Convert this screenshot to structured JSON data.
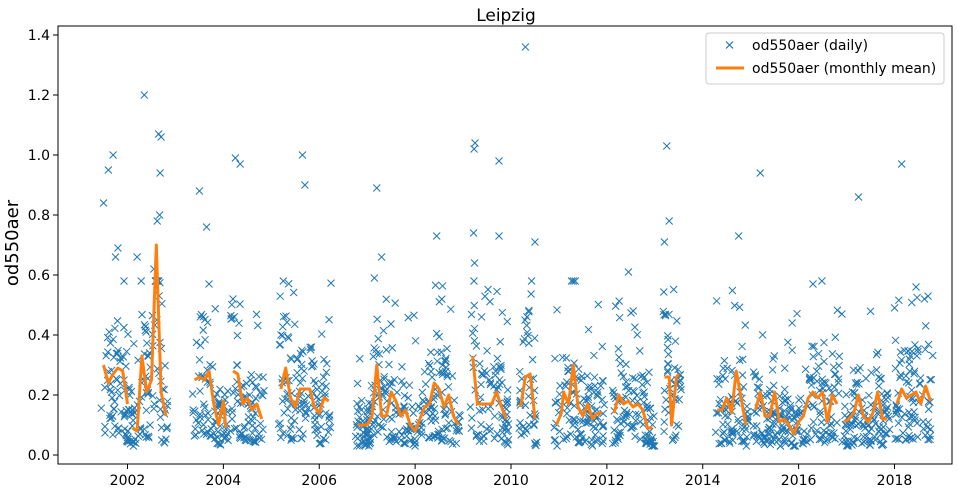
{
  "chart_data": {
    "type": "line",
    "title": "Leipzig",
    "xlabel": "",
    "ylabel": "od550aer",
    "xlim": [
      2000.55,
      2019.2
    ],
    "ylim": [
      -0.03,
      1.43
    ],
    "x_ticks": [
      2002,
      2004,
      2006,
      2008,
      2010,
      2012,
      2014,
      2016,
      2018
    ],
    "x_tick_labels": [
      "2002",
      "2004",
      "2006",
      "2008",
      "2010",
      "2012",
      "2014",
      "2016",
      "2018"
    ],
    "y_ticks": [
      0.0,
      0.2,
      0.4,
      0.6,
      0.8,
      1.0,
      1.2,
      1.4
    ],
    "y_tick_labels": [
      "0.0",
      "0.2",
      "0.4",
      "0.6",
      "0.8",
      "1.0",
      "1.2",
      "1.4"
    ],
    "grid": false,
    "legend_position": "top-right",
    "colors": {
      "daily": "#1f77b4",
      "monthly": "#ff7f0e"
    },
    "series": [
      {
        "name": "od550aer (daily)",
        "style": "markers-x",
        "outliers": [
          [
            2001.5,
            0.84
          ],
          [
            2001.6,
            0.95
          ],
          [
            2001.7,
            1.0
          ],
          [
            2001.8,
            0.69
          ],
          [
            2001.75,
            0.66
          ],
          [
            2002.35,
            1.2
          ],
          [
            2002.55,
            0.62
          ],
          [
            2002.65,
            1.07
          ],
          [
            2002.7,
            1.06
          ],
          [
            2002.68,
            0.94
          ],
          [
            2002.67,
            0.8
          ],
          [
            2002.62,
            0.78
          ],
          [
            2002.2,
            0.66
          ],
          [
            2003.5,
            0.88
          ],
          [
            2003.65,
            0.76
          ],
          [
            2004.25,
            0.99
          ],
          [
            2004.35,
            0.97
          ],
          [
            2005.65,
            1.0
          ],
          [
            2005.7,
            0.9
          ],
          [
            2007.2,
            0.89
          ],
          [
            2007.3,
            0.66
          ],
          [
            2008.45,
            0.73
          ],
          [
            2009.25,
            1.04
          ],
          [
            2009.23,
            1.02
          ],
          [
            2009.22,
            0.74
          ],
          [
            2009.24,
            0.64
          ],
          [
            2009.75,
            0.98
          ],
          [
            2009.75,
            0.73
          ],
          [
            2010.3,
            1.36
          ],
          [
            2010.5,
            0.71
          ],
          [
            2012.45,
            0.61
          ],
          [
            2013.25,
            1.03
          ],
          [
            2013.3,
            0.78
          ],
          [
            2013.2,
            0.71
          ],
          [
            2014.75,
            0.73
          ],
          [
            2015.2,
            0.94
          ],
          [
            2017.25,
            0.86
          ],
          [
            2018.15,
            0.97
          ],
          [
            2018.45,
            0.56
          ],
          [
            2005.25,
            0.58
          ],
          [
            2004.2,
            0.52
          ],
          [
            2003.7,
            0.57
          ],
          [
            2007.15,
            0.59
          ],
          [
            2016.3,
            0.57
          ],
          [
            2012.55,
            0.48
          ]
        ]
      },
      {
        "name": "od550aer (monthly mean)",
        "style": "line",
        "segments": [
          [
            [
              2001.5,
              0.3
            ],
            [
              2001.6,
              0.24
            ],
            [
              2001.7,
              0.27
            ],
            [
              2001.8,
              0.29
            ],
            [
              2001.9,
              0.28
            ],
            [
              2002.0,
              0.17
            ]
          ],
          [
            [
              2002.1,
              0.09
            ],
            [
              2002.2,
              0.08
            ],
            [
              2002.3,
              0.33
            ],
            [
              2002.4,
              0.21
            ],
            [
              2002.5,
              0.25
            ],
            [
              2002.6,
              0.7
            ],
            [
              2002.7,
              0.21
            ],
            [
              2002.8,
              0.13
            ]
          ],
          [
            [
              2003.4,
              0.25
            ],
            [
              2003.5,
              0.26
            ],
            [
              2003.6,
              0.25
            ],
            [
              2003.7,
              0.28
            ],
            [
              2003.8,
              0.17
            ],
            [
              2003.9,
              0.1
            ],
            [
              2004.0,
              0.18
            ],
            [
              2004.05,
              0.09
            ]
          ],
          [
            [
              2004.2,
              0.28
            ],
            [
              2004.3,
              0.27
            ],
            [
              2004.4,
              0.17
            ],
            [
              2004.5,
              0.19
            ],
            [
              2004.6,
              0.15
            ],
            [
              2004.7,
              0.17
            ],
            [
              2004.8,
              0.12
            ]
          ],
          [
            [
              2005.2,
              0.22
            ],
            [
              2005.3,
              0.29
            ],
            [
              2005.4,
              0.19
            ],
            [
              2005.5,
              0.16
            ],
            [
              2005.6,
              0.22
            ],
            [
              2005.7,
              0.22
            ],
            [
              2005.8,
              0.22
            ],
            [
              2005.9,
              0.16
            ],
            [
              2006.0,
              0.14
            ],
            [
              2006.1,
              0.19
            ],
            [
              2006.2,
              0.18
            ]
          ],
          [
            [
              2006.8,
              0.1
            ],
            [
              2006.9,
              0.1
            ],
            [
              2007.0,
              0.1
            ],
            [
              2007.1,
              0.13
            ],
            [
              2007.2,
              0.3
            ],
            [
              2007.3,
              0.13
            ],
            [
              2007.4,
              0.13
            ],
            [
              2007.5,
              0.21
            ],
            [
              2007.6,
              0.18
            ],
            [
              2007.7,
              0.13
            ],
            [
              2007.8,
              0.15
            ],
            [
              2007.9,
              0.1
            ],
            [
              2008.0,
              0.08
            ],
            [
              2008.1,
              0.12
            ],
            [
              2008.2,
              0.16
            ],
            [
              2008.3,
              0.17
            ],
            [
              2008.4,
              0.24
            ],
            [
              2008.5,
              0.22
            ],
            [
              2008.6,
              0.16
            ],
            [
              2008.7,
              0.2
            ],
            [
              2008.8,
              0.13
            ],
            [
              2008.9,
              0.1
            ]
          ],
          [
            [
              2009.2,
              0.33
            ],
            [
              2009.3,
              0.17
            ],
            [
              2009.4,
              0.17
            ],
            [
              2009.5,
              0.17
            ],
            [
              2009.6,
              0.17
            ],
            [
              2009.7,
              0.21
            ],
            [
              2009.8,
              0.16
            ],
            [
              2009.9,
              0.12
            ]
          ],
          [
            [
              2010.2,
              0.16
            ],
            [
              2010.3,
              0.26
            ],
            [
              2010.4,
              0.27
            ],
            [
              2010.5,
              0.12
            ]
          ],
          [
            [
              2010.95,
              0.1
            ],
            [
              2011.05,
              0.14
            ],
            [
              2011.1,
              0.21
            ],
            [
              2011.2,
              0.17
            ],
            [
              2011.3,
              0.3
            ],
            [
              2011.4,
              0.16
            ],
            [
              2011.5,
              0.13
            ],
            [
              2011.6,
              0.17
            ],
            [
              2011.7,
              0.12
            ],
            [
              2011.8,
              0.14
            ],
            [
              2011.9,
              0.14
            ]
          ],
          [
            [
              2012.15,
              0.14
            ],
            [
              2012.25,
              0.2
            ],
            [
              2012.35,
              0.17
            ],
            [
              2012.45,
              0.18
            ],
            [
              2012.55,
              0.16
            ],
            [
              2012.65,
              0.17
            ],
            [
              2012.75,
              0.15
            ],
            [
              2012.85,
              0.09
            ],
            [
              2012.95,
              0.09
            ]
          ],
          [
            [
              2013.2,
              0.26
            ],
            [
              2013.3,
              0.26
            ],
            [
              2013.35,
              0.1
            ],
            [
              2013.45,
              0.26
            ],
            [
              2013.5,
              0.27
            ]
          ],
          [
            [
              2014.3,
              0.15
            ],
            [
              2014.4,
              0.15
            ],
            [
              2014.5,
              0.19
            ],
            [
              2014.6,
              0.14
            ],
            [
              2014.7,
              0.28
            ],
            [
              2014.8,
              0.19
            ],
            [
              2014.9,
              0.1
            ]
          ],
          [
            [
              2015.1,
              0.15
            ],
            [
              2015.2,
              0.21
            ],
            [
              2015.3,
              0.13
            ],
            [
              2015.4,
              0.13
            ],
            [
              2015.5,
              0.21
            ],
            [
              2015.6,
              0.11
            ],
            [
              2015.7,
              0.12
            ],
            [
              2015.8,
              0.1
            ],
            [
              2015.9,
              0.07
            ],
            [
              2016.0,
              0.11
            ],
            [
              2016.1,
              0.13
            ],
            [
              2016.2,
              0.19
            ],
            [
              2016.3,
              0.21
            ],
            [
              2016.4,
              0.19
            ],
            [
              2016.5,
              0.21
            ],
            [
              2016.6,
              0.11
            ],
            [
              2016.7,
              0.2
            ],
            [
              2016.8,
              0.17
            ]
          ],
          [
            [
              2016.95,
              0.11
            ],
            [
              2017.05,
              0.12
            ],
            [
              2017.15,
              0.14
            ],
            [
              2017.25,
              0.2
            ],
            [
              2017.35,
              0.13
            ],
            [
              2017.45,
              0.11
            ],
            [
              2017.55,
              0.14
            ],
            [
              2017.65,
              0.21
            ],
            [
              2017.75,
              0.12
            ],
            [
              2017.85,
              0.12
            ]
          ],
          [
            [
              2018.05,
              0.17
            ],
            [
              2018.15,
              0.22
            ],
            [
              2018.25,
              0.19
            ],
            [
              2018.35,
              0.2
            ],
            [
              2018.45,
              0.21
            ],
            [
              2018.55,
              0.17
            ],
            [
              2018.65,
              0.23
            ],
            [
              2018.75,
              0.18
            ]
          ]
        ]
      }
    ]
  }
}
